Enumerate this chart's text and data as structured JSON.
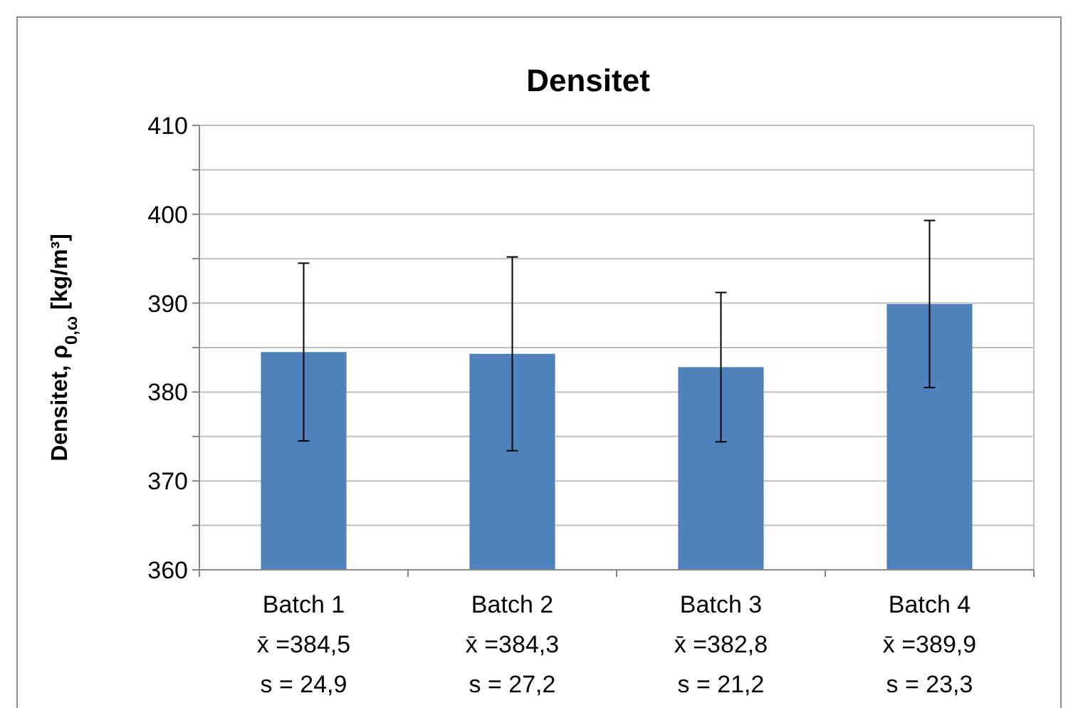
{
  "chart_data": {
    "type": "bar",
    "title": "Densitet",
    "ylabel": "Densitet, ρ$_{0,ω}$ [kg/m³]",
    "categories": [
      "Batch 1\nx̄ =384,5\ns = 24,9",
      "Batch 2\nx̄ =384,3\ns = 27,2",
      "Batch 3\nx̄ =382,8\ns = 21,2",
      "Batch 4\nx̄ =389,9\ns = 23,3"
    ],
    "values": [
      384.5,
      384.3,
      382.8,
      389.9
    ],
    "color": "#4f81bd",
    "errors": [
      10,
      10.9,
      8.4,
      9.4
    ],
    "ylim": [
      360,
      410
    ],
    "yticks": [
      360,
      {
        "value": 365,
        "label": null
      },
      370,
      {
        "value": 375,
        "label": null
      },
      380,
      {
        "value": 385,
        "label": null
      },
      390,
      {
        "value": 395,
        "label": null
      },
      400,
      {
        "value": 405,
        "label": null
      },
      410
    ],
    "grid": "y"
  }
}
